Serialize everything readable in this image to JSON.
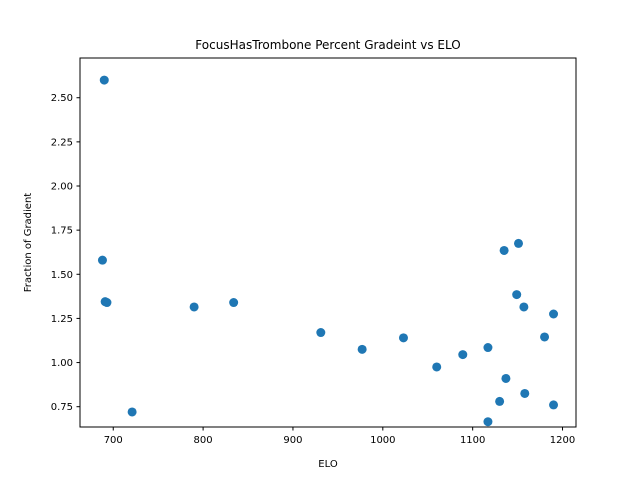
{
  "chart_data": {
    "type": "scatter",
    "title": "FocusHasTrombone Percent Gradeint vs ELO",
    "xlabel": "ELO",
    "ylabel": "Fraction of Gradient",
    "xlim": [
      663,
      1215
    ],
    "ylim": [
      0.635,
      2.725
    ],
    "xticks": [
      700,
      800,
      900,
      1000,
      1100,
      1200
    ],
    "yticks": [
      0.75,
      1.0,
      1.25,
      1.5,
      1.75,
      2.0,
      2.25,
      2.5
    ],
    "xtick_labels": [
      "700",
      "800",
      "900",
      "1000",
      "1100",
      "1200"
    ],
    "ytick_labels": [
      "0.75",
      "1.00",
      "1.25",
      "1.50",
      "1.75",
      "2.00",
      "2.25",
      "2.50"
    ],
    "grid": false,
    "marker_color": "#1f77b4",
    "points": [
      {
        "x": 690,
        "y": 2.6
      },
      {
        "x": 688,
        "y": 1.58
      },
      {
        "x": 691,
        "y": 1.345
      },
      {
        "x": 693,
        "y": 1.34
      },
      {
        "x": 721,
        "y": 0.72
      },
      {
        "x": 790,
        "y": 1.315
      },
      {
        "x": 834,
        "y": 1.34
      },
      {
        "x": 931,
        "y": 1.17
      },
      {
        "x": 977,
        "y": 1.075
      },
      {
        "x": 1023,
        "y": 1.14
      },
      {
        "x": 1060,
        "y": 0.975
      },
      {
        "x": 1089,
        "y": 1.045
      },
      {
        "x": 1117,
        "y": 1.085
      },
      {
        "x": 1117,
        "y": 0.665
      },
      {
        "x": 1130,
        "y": 0.78
      },
      {
        "x": 1135,
        "y": 1.635
      },
      {
        "x": 1137,
        "y": 0.91
      },
      {
        "x": 1149,
        "y": 1.385
      },
      {
        "x": 1151,
        "y": 1.675
      },
      {
        "x": 1157,
        "y": 1.315
      },
      {
        "x": 1158,
        "y": 0.825
      },
      {
        "x": 1180,
        "y": 1.145
      },
      {
        "x": 1190,
        "y": 1.275
      },
      {
        "x": 1190,
        "y": 0.76
      }
    ]
  }
}
